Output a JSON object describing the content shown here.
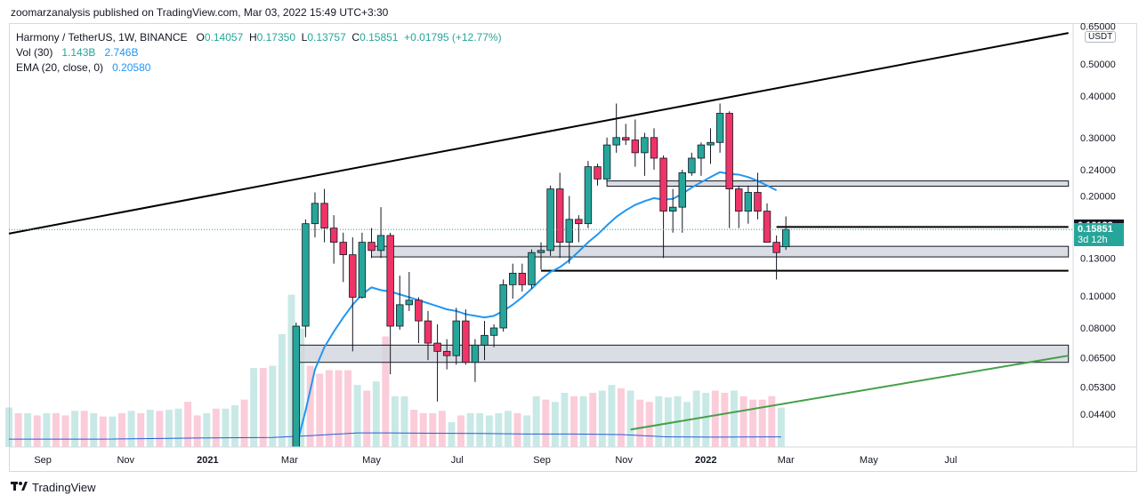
{
  "header": {
    "published": "zoomarzanalysis published on TradingView.com, Mar 03, 2022 15:49 UTC+3:30"
  },
  "legend": {
    "symbol": "Harmony / TetherUS, 1W, BINANCE",
    "ohlc": {
      "o_label": "O",
      "o": "0.14057",
      "h_label": "H",
      "h": "0.17350",
      "l_label": "L",
      "l": "0.13757",
      "c_label": "C",
      "c": "0.15851",
      "change": "+0.01795 (+12.77%)"
    },
    "volume": {
      "label": "Vol (30)",
      "v1": "1.143B",
      "v2": "2.746B"
    },
    "ema": {
      "label": "EMA (20, close, 0)",
      "value": "0.20580"
    }
  },
  "price_axis": {
    "unit": "USDT",
    "current_price": "0.16123",
    "last_price": "0.15851",
    "countdown": "3d 12h"
  },
  "footer": {
    "brand": "TradingView"
  },
  "colors": {
    "up": "#26a69a",
    "down": "#ef3467",
    "ema": "#2196f3",
    "trend_upper": "#000000",
    "trend_lower": "#43a047",
    "zone": "#d1d4dc"
  },
  "chart_data": {
    "type": "candlestick",
    "y_scale": "log",
    "ylim": [
      0.035,
      0.66
    ],
    "xlim": [
      0,
      113
    ],
    "y_ticks": [
      "0.65000",
      "0.50000",
      "0.40000",
      "0.30000",
      "0.24000",
      "0.20000",
      "0.16000",
      "0.13000",
      "0.10000",
      "0.08000",
      "0.06500",
      "0.05300",
      "0.04400"
    ],
    "x_ticks": [
      {
        "label": "Sep",
        "x": 3.6
      },
      {
        "label": "Nov",
        "x": 12.4
      },
      {
        "label": "2021",
        "x": 21.1
      },
      {
        "label": "Mar",
        "x": 29.8
      },
      {
        "label": "May",
        "x": 38.5
      },
      {
        "label": "Jul",
        "x": 47.6
      },
      {
        "label": "Sep",
        "x": 56.6
      },
      {
        "label": "Nov",
        "x": 65.3
      },
      {
        "label": "2022",
        "x": 74.0
      },
      {
        "label": "Mar",
        "x": 82.5
      },
      {
        "label": "May",
        "x": 91.3
      },
      {
        "label": "Jul",
        "x": 100.0
      }
    ],
    "candles": [
      {
        "x": 30,
        "o": 0.03,
        "h": 0.083,
        "l": 0.028,
        "c": 0.081
      },
      {
        "x": 31,
        "o": 0.081,
        "h": 0.17,
        "l": 0.075,
        "c": 0.165
      },
      {
        "x": 32,
        "o": 0.165,
        "h": 0.205,
        "l": 0.15,
        "c": 0.19
      },
      {
        "x": 33,
        "o": 0.19,
        "h": 0.21,
        "l": 0.145,
        "c": 0.16
      },
      {
        "x": 34,
        "o": 0.16,
        "h": 0.175,
        "l": 0.125,
        "c": 0.145
      },
      {
        "x": 35,
        "o": 0.145,
        "h": 0.155,
        "l": 0.11,
        "c": 0.133
      },
      {
        "x": 36,
        "o": 0.133,
        "h": 0.15,
        "l": 0.068,
        "c": 0.099
      },
      {
        "x": 37,
        "o": 0.099,
        "h": 0.155,
        "l": 0.098,
        "c": 0.145
      },
      {
        "x": 38,
        "o": 0.145,
        "h": 0.16,
        "l": 0.13,
        "c": 0.137
      },
      {
        "x": 39,
        "o": 0.137,
        "h": 0.185,
        "l": 0.13,
        "c": 0.152
      },
      {
        "x": 40,
        "o": 0.152,
        "h": 0.155,
        "l": 0.058,
        "c": 0.081
      },
      {
        "x": 41,
        "o": 0.081,
        "h": 0.115,
        "l": 0.079,
        "c": 0.094
      },
      {
        "x": 42,
        "o": 0.094,
        "h": 0.118,
        "l": 0.09,
        "c": 0.097
      },
      {
        "x": 43,
        "o": 0.097,
        "h": 0.099,
        "l": 0.072,
        "c": 0.084
      },
      {
        "x": 44,
        "o": 0.084,
        "h": 0.09,
        "l": 0.064,
        "c": 0.072
      },
      {
        "x": 45,
        "o": 0.072,
        "h": 0.082,
        "l": 0.048,
        "c": 0.068
      },
      {
        "x": 46,
        "o": 0.068,
        "h": 0.074,
        "l": 0.06,
        "c": 0.066
      },
      {
        "x": 47,
        "o": 0.066,
        "h": 0.092,
        "l": 0.062,
        "c": 0.084
      },
      {
        "x": 48,
        "o": 0.084,
        "h": 0.091,
        "l": 0.062,
        "c": 0.063
      },
      {
        "x": 49,
        "o": 0.063,
        "h": 0.074,
        "l": 0.055,
        "c": 0.071
      },
      {
        "x": 50,
        "o": 0.071,
        "h": 0.084,
        "l": 0.064,
        "c": 0.076
      },
      {
        "x": 51,
        "o": 0.076,
        "h": 0.082,
        "l": 0.07,
        "c": 0.08
      },
      {
        "x": 52,
        "o": 0.08,
        "h": 0.112,
        "l": 0.078,
        "c": 0.108
      },
      {
        "x": 53,
        "o": 0.108,
        "h": 0.125,
        "l": 0.098,
        "c": 0.117
      },
      {
        "x": 54,
        "o": 0.117,
        "h": 0.125,
        "l": 0.103,
        "c": 0.108
      },
      {
        "x": 55,
        "o": 0.108,
        "h": 0.138,
        "l": 0.105,
        "c": 0.135
      },
      {
        "x": 56,
        "o": 0.135,
        "h": 0.145,
        "l": 0.12,
        "c": 0.137
      },
      {
        "x": 57,
        "o": 0.137,
        "h": 0.215,
        "l": 0.132,
        "c": 0.21
      },
      {
        "x": 58,
        "o": 0.21,
        "h": 0.235,
        "l": 0.13,
        "c": 0.145
      },
      {
        "x": 59,
        "o": 0.145,
        "h": 0.2,
        "l": 0.125,
        "c": 0.17
      },
      {
        "x": 60,
        "o": 0.17,
        "h": 0.175,
        "l": 0.145,
        "c": 0.165
      },
      {
        "x": 61,
        "o": 0.165,
        "h": 0.255,
        "l": 0.16,
        "c": 0.245
      },
      {
        "x": 62,
        "o": 0.245,
        "h": 0.25,
        "l": 0.215,
        "c": 0.225
      },
      {
        "x": 63,
        "o": 0.225,
        "h": 0.3,
        "l": 0.22,
        "c": 0.285
      },
      {
        "x": 64,
        "o": 0.285,
        "h": 0.38,
        "l": 0.27,
        "c": 0.3
      },
      {
        "x": 65,
        "o": 0.3,
        "h": 0.33,
        "l": 0.285,
        "c": 0.295
      },
      {
        "x": 66,
        "o": 0.295,
        "h": 0.34,
        "l": 0.245,
        "c": 0.27
      },
      {
        "x": 67,
        "o": 0.27,
        "h": 0.31,
        "l": 0.23,
        "c": 0.3
      },
      {
        "x": 68,
        "o": 0.3,
        "h": 0.32,
        "l": 0.24,
        "c": 0.26
      },
      {
        "x": 69,
        "o": 0.26,
        "h": 0.265,
        "l": 0.13,
        "c": 0.18
      },
      {
        "x": 70,
        "o": 0.18,
        "h": 0.21,
        "l": 0.155,
        "c": 0.185
      },
      {
        "x": 71,
        "o": 0.185,
        "h": 0.24,
        "l": 0.155,
        "c": 0.235
      },
      {
        "x": 72,
        "o": 0.235,
        "h": 0.27,
        "l": 0.23,
        "c": 0.26
      },
      {
        "x": 73,
        "o": 0.26,
        "h": 0.29,
        "l": 0.23,
        "c": 0.285
      },
      {
        "x": 74,
        "o": 0.285,
        "h": 0.32,
        "l": 0.25,
        "c": 0.29
      },
      {
        "x": 75,
        "o": 0.29,
        "h": 0.38,
        "l": 0.27,
        "c": 0.355
      },
      {
        "x": 76,
        "o": 0.355,
        "h": 0.36,
        "l": 0.16,
        "c": 0.21
      },
      {
        "x": 77,
        "o": 0.21,
        "h": 0.215,
        "l": 0.16,
        "c": 0.18
      },
      {
        "x": 78,
        "o": 0.18,
        "h": 0.215,
        "l": 0.165,
        "c": 0.205
      },
      {
        "x": 79,
        "o": 0.205,
        "h": 0.235,
        "l": 0.17,
        "c": 0.18
      },
      {
        "x": 80,
        "o": 0.18,
        "h": 0.19,
        "l": 0.145,
        "c": 0.145
      },
      {
        "x": 81,
        "o": 0.145,
        "h": 0.152,
        "l": 0.112,
        "c": 0.135
      },
      {
        "x": 82,
        "o": 0.14057,
        "h": 0.1735,
        "l": 0.13757,
        "c": 0.15851
      }
    ],
    "volume_ma_note": "Vol (30)",
    "ema_label": "EMA (20, close, 0)",
    "ema": [
      [
        30.5,
        0.028
      ],
      [
        31.5,
        0.045
      ],
      [
        32.5,
        0.06
      ],
      [
        33.5,
        0.07
      ],
      [
        34.5,
        0.078
      ],
      [
        35.5,
        0.086
      ],
      [
        36.5,
        0.094
      ],
      [
        37.5,
        0.101
      ],
      [
        38.5,
        0.106
      ],
      [
        39.5,
        0.104
      ],
      [
        40.5,
        0.103
      ],
      [
        41.5,
        0.101
      ],
      [
        42.5,
        0.099
      ],
      [
        43.5,
        0.097
      ],
      [
        44.5,
        0.095
      ],
      [
        45.5,
        0.093
      ],
      [
        46.5,
        0.091
      ],
      [
        47.5,
        0.09
      ],
      [
        48.5,
        0.088
      ],
      [
        49.5,
        0.087
      ],
      [
        50.5,
        0.086
      ],
      [
        51.5,
        0.087
      ],
      [
        52.5,
        0.09
      ],
      [
        53.5,
        0.094
      ],
      [
        54.5,
        0.099
      ],
      [
        55.5,
        0.105
      ],
      [
        56.5,
        0.112
      ],
      [
        57.5,
        0.118
      ],
      [
        58.5,
        0.122
      ],
      [
        59.5,
        0.128
      ],
      [
        60.5,
        0.136
      ],
      [
        61.5,
        0.145
      ],
      [
        62.5,
        0.153
      ],
      [
        63.5,
        0.163
      ],
      [
        64.5,
        0.173
      ],
      [
        65.5,
        0.181
      ],
      [
        66.5,
        0.188
      ],
      [
        67.5,
        0.193
      ],
      [
        68.5,
        0.197
      ],
      [
        69.5,
        0.195
      ],
      [
        70.5,
        0.196
      ],
      [
        71.5,
        0.203
      ],
      [
        72.5,
        0.212
      ],
      [
        73.5,
        0.22
      ],
      [
        74.5,
        0.228
      ],
      [
        75.5,
        0.236
      ],
      [
        76.5,
        0.233
      ],
      [
        77.5,
        0.232
      ],
      [
        78.5,
        0.228
      ],
      [
        79.5,
        0.222
      ],
      [
        80.5,
        0.215
      ],
      [
        81.5,
        0.208
      ]
    ],
    "volume": {
      "values": [
        0.35,
        0.3,
        0.3,
        0.28,
        0.3,
        0.3,
        0.28,
        0.32,
        0.32,
        0.3,
        0.27,
        0.27,
        0.3,
        0.32,
        0.3,
        0.33,
        0.32,
        0.33,
        0.34,
        0.4,
        0.28,
        0.3,
        0.34,
        0.34,
        0.37,
        0.42,
        0.7,
        0.7,
        0.72,
        1.0,
        1.35,
        1.05,
        0.72,
        0.65,
        0.68,
        0.68,
        0.68,
        0.55,
        0.5,
        0.58,
        0.98,
        0.45,
        0.45,
        0.33,
        0.3,
        0.3,
        0.32,
        0.22,
        0.28,
        0.3,
        0.3,
        0.28,
        0.3,
        0.32,
        0.3,
        0.28,
        0.45,
        0.42,
        0.4,
        0.48,
        0.45,
        0.45,
        0.48,
        0.5,
        0.55,
        0.52,
        0.5,
        0.42,
        0.4,
        0.45,
        0.44,
        0.45,
        0.4,
        0.5,
        0.48,
        0.5,
        0.48,
        0.5,
        0.45,
        0.42,
        0.42,
        0.45,
        0.35
      ],
      "up": [
        1,
        0,
        1,
        0,
        1,
        0,
        0,
        1,
        0,
        1,
        0,
        1,
        0,
        1,
        0,
        1,
        0,
        1,
        1,
        0,
        0,
        1,
        0,
        1,
        1,
        0,
        1,
        0,
        1,
        1,
        1,
        1,
        0,
        0,
        0,
        0,
        0,
        1,
        0,
        1,
        0,
        1,
        1,
        0,
        0,
        0,
        0,
        1,
        0,
        1,
        1,
        1,
        1,
        1,
        0,
        1,
        1,
        0,
        1,
        1,
        0,
        1,
        0,
        1,
        1,
        0,
        1,
        0,
        0,
        1,
        1,
        1,
        1,
        1,
        1,
        0,
        0,
        1,
        0,
        0,
        0,
        0,
        1
      ],
      "ma": [
        [
          0,
          0.07
        ],
        [
          10,
          0.07
        ],
        [
          20,
          0.08
        ],
        [
          28,
          0.085
        ],
        [
          32,
          0.1
        ],
        [
          37,
          0.125
        ],
        [
          40,
          0.125
        ],
        [
          45,
          0.122
        ],
        [
          50,
          0.12
        ],
        [
          55,
          0.115
        ],
        [
          60,
          0.115
        ],
        [
          65,
          0.11
        ],
        [
          70,
          0.09
        ],
        [
          75,
          0.088
        ],
        [
          80,
          0.09
        ],
        [
          82,
          0.09
        ]
      ]
    },
    "drawings": {
      "trend_upper": [
        [
          0,
          0.154
        ],
        [
          112.5,
          0.62
        ]
      ],
      "trend_lower": [
        [
          66,
          0.0395
        ],
        [
          112.5,
          0.066
        ]
      ],
      "zones": [
        {
          "x1": 63.5,
          "x2": 112.5,
          "y1": 0.222,
          "y2": 0.214
        },
        {
          "x1": 38.5,
          "x2": 112.5,
          "y1": 0.141,
          "y2": 0.131
        },
        {
          "x1": 30.5,
          "x2": 112.5,
          "y1": 0.071,
          "y2": 0.063
        }
      ],
      "levels": [
        {
          "x1": 56.5,
          "x2": 112.5,
          "y": 0.119
        },
        {
          "x1": 81.5,
          "x2": 112.5,
          "y": 0.16123
        }
      ]
    }
  }
}
